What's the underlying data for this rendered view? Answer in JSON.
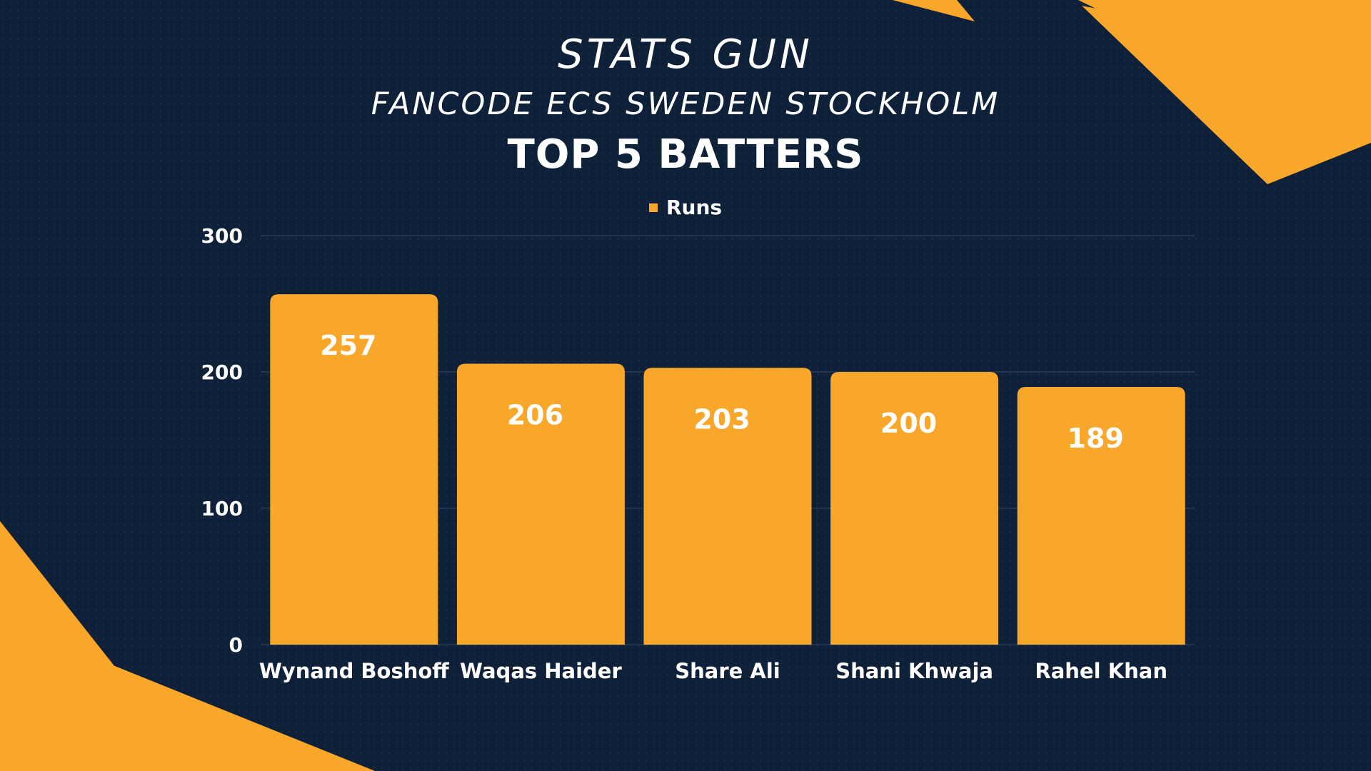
{
  "header": {
    "brand": "STATS GUN",
    "subtitle": "FANCODE ECS SWEDEN STOCKHOLM"
  },
  "colors": {
    "background": "#0f2039",
    "accent": "#f9a72b",
    "text": "#ffffff",
    "gridline": "#2a3c56"
  },
  "chart_data": {
    "type": "bar",
    "title": "TOP 5 BATTERS",
    "categories": [
      "Wynand Boshoff",
      "Waqas Haider",
      "Share Ali",
      "Shani Khwaja",
      "Rahel Khan"
    ],
    "series": [
      {
        "name": "Runs",
        "values": [
          257,
          206,
          203,
          200,
          189
        ]
      }
    ],
    "ylim": [
      0,
      300
    ],
    "yticks": [
      0,
      100,
      200,
      300
    ],
    "grid": true,
    "legend": "top-center",
    "data_labels": true
  }
}
